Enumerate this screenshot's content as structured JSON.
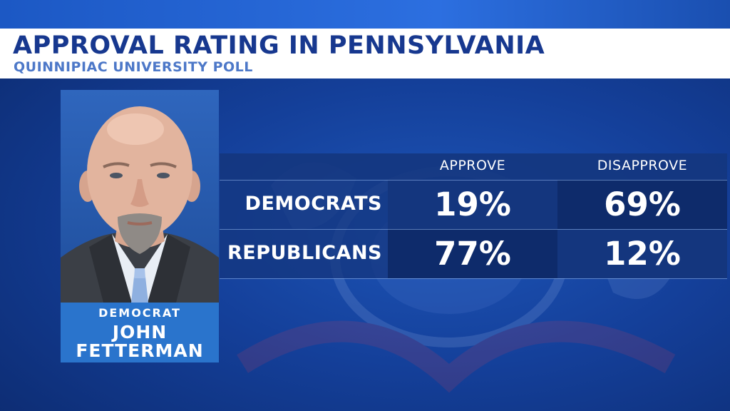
{
  "title": "APPROVAL RATING IN PENNSYLVANIA",
  "subtitle": "QUINNIPIAC UNIVERSITY POLL",
  "candidate": {
    "party": "DEMOCRAT",
    "first_name": "JOHN",
    "last_name": "FETTERMAN"
  },
  "colors": {
    "background": "#143f99",
    "title_text": "#17388f",
    "subtitle_text": "#4d78c8",
    "name_box": "#2a74cc",
    "table_dark": "#0e2b6b",
    "table_mid": "#14367e"
  },
  "chart_data": {
    "type": "table",
    "columns": [
      "APPROVE",
      "DISAPPROVE"
    ],
    "rows": [
      {
        "label": "DEMOCRATS",
        "values": [
          "19%",
          "69%"
        ]
      },
      {
        "label": "REPUBLICANS",
        "values": [
          "77%",
          "12%"
        ]
      }
    ]
  }
}
